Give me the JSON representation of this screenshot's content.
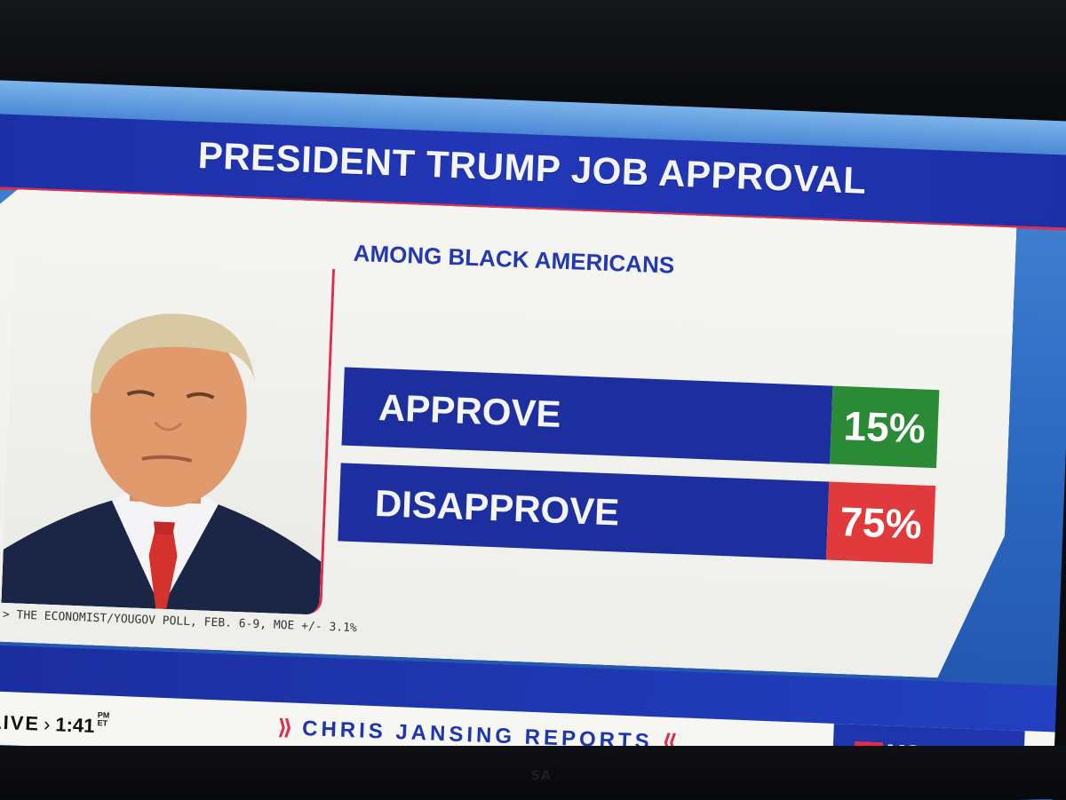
{
  "graphic": {
    "title": "PRESIDENT TRUMP JOB APPROVAL",
    "subtitle": "AMONG BLACK AMERICANS",
    "rows": [
      {
        "label": "APPROVE",
        "value": "15%",
        "color": "#2b8a35"
      },
      {
        "label": "DISAPPROVE",
        "value": "75%",
        "color": "#e03a3c"
      }
    ],
    "source": "> THE ECONOMIST/YOUGOV POLL, FEB. 6-9, MOE +/- 3.1%"
  },
  "ticker": {
    "live": "LIVE",
    "time": "1:41",
    "ampm_top": "PM",
    "ampm_bottom": "ET",
    "show_left": "⟫",
    "show": "CHRIS JANSING REPORTS",
    "show_right": "⟪",
    "network": "MS NOW"
  },
  "tv_brand": "SA",
  "colors": {
    "title_blue": "#1c2fa6",
    "accent_red": "#e12d4d",
    "approve_green": "#2b8a35",
    "disapprove_red": "#e03a3c"
  }
}
